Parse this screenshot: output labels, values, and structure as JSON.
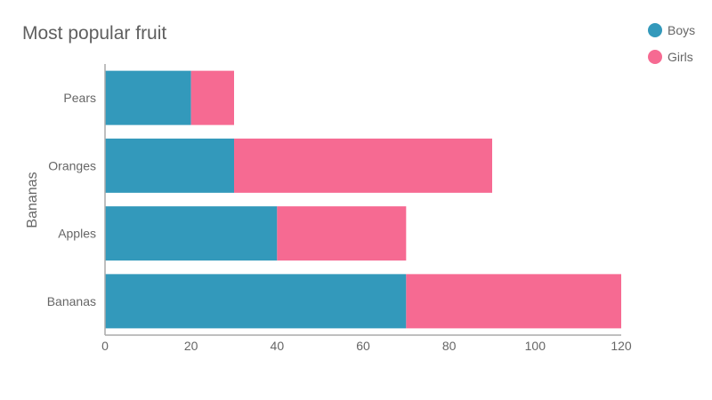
{
  "chart_data": {
    "type": "bar",
    "orientation": "horizontal",
    "stacked": true,
    "title": "Most popular fruit",
    "ylabel": "Bananas",
    "xlabel": "",
    "categories": [
      "Pears",
      "Oranges",
      "Apples",
      "Bananas"
    ],
    "series": [
      {
        "name": "Boys",
        "values": [
          20,
          30,
          40,
          70
        ],
        "color": "#3399bb"
      },
      {
        "name": "Girls",
        "values": [
          10,
          60,
          30,
          50
        ],
        "color": "#f66a92"
      }
    ],
    "xlim": [
      0,
      120
    ],
    "xticks": [
      "0",
      "20",
      "40",
      "60",
      "80",
      "100",
      "120"
    ],
    "grid": false,
    "legend_position": "top-right"
  }
}
